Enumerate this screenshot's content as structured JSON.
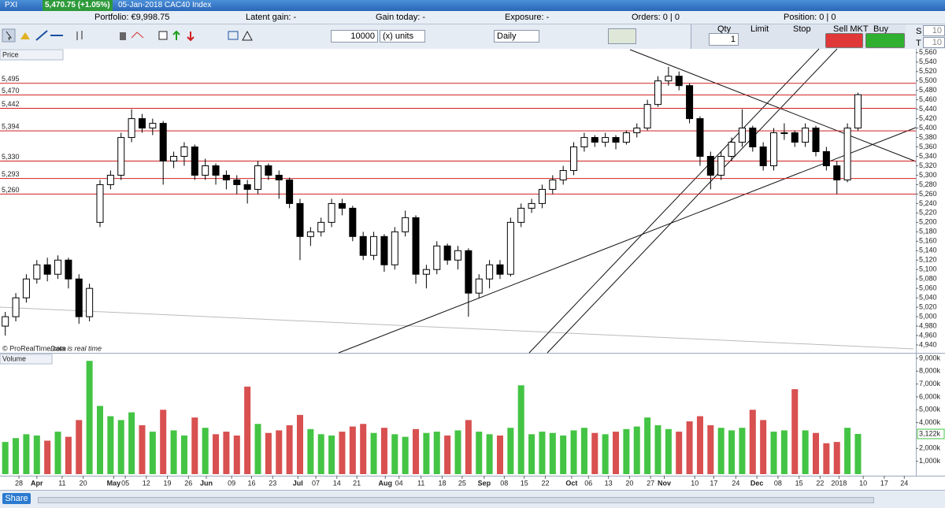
{
  "header": {
    "ticker": "PXI",
    "quote": "5,470.75 (+1.05%)",
    "instrument": "05-Jan-2018 CAC40 Index"
  },
  "info": {
    "portfolio": "Portfolio: €9,998.75",
    "latent_gain": "Latent gain: -",
    "gain_today": "Gain today: -",
    "exposure": "Exposure: -",
    "orders": "Orders: 0 | 0",
    "position": "Position: 0 | 0"
  },
  "toolbar": {
    "quantity": "10000",
    "units": "(x) units",
    "period": "Daily",
    "qty_label": "Qty",
    "qty_value": "1",
    "limit": "Limit",
    "stop": "Stop",
    "sell": "Sell MKT",
    "buy": "Buy MKT",
    "s_label": "S",
    "s_value": "10",
    "t_label": "T",
    "t_value": "10"
  },
  "panels": {
    "price": "Price",
    "volume": "Volume",
    "copyright": "© ProRealTime.com",
    "realtime": "Data is real time"
  },
  "footer": {
    "share": "Share"
  },
  "chart_data": {
    "type": "candlestick",
    "candles": [
      [
        4980,
        5010,
        4960,
        5000
      ],
      [
        5000,
        5050,
        4990,
        5040
      ],
      [
        5040,
        5090,
        5030,
        5080
      ],
      [
        5080,
        5120,
        5070,
        5110
      ],
      [
        5110,
        5125,
        5075,
        5090
      ],
      [
        5090,
        5130,
        5080,
        5120
      ],
      [
        5120,
        5125,
        5060,
        5080
      ],
      [
        5080,
        5090,
        4985,
        5000
      ],
      [
        5000,
        5070,
        4990,
        5060
      ],
      [
        5200,
        5290,
        5190,
        5280
      ],
      [
        5280,
        5310,
        5270,
        5300
      ],
      [
        5300,
        5390,
        5290,
        5380
      ],
      [
        5380,
        5440,
        5370,
        5420
      ],
      [
        5420,
        5430,
        5390,
        5400
      ],
      [
        5400,
        5420,
        5385,
        5410
      ],
      [
        5410,
        5415,
        5280,
        5330
      ],
      [
        5330,
        5350,
        5315,
        5340
      ],
      [
        5340,
        5370,
        5320,
        5360
      ],
      [
        5360,
        5365,
        5290,
        5300
      ],
      [
        5300,
        5335,
        5290,
        5320
      ],
      [
        5320,
        5325,
        5280,
        5300
      ],
      [
        5300,
        5310,
        5270,
        5290
      ],
      [
        5290,
        5300,
        5260,
        5280
      ],
      [
        5280,
        5290,
        5240,
        5270
      ],
      [
        5270,
        5330,
        5260,
        5320
      ],
      [
        5320,
        5325,
        5290,
        5300
      ],
      [
        5300,
        5310,
        5250,
        5290
      ],
      [
        5290,
        5295,
        5230,
        5240
      ],
      [
        5240,
        5250,
        5120,
        5170
      ],
      [
        5170,
        5190,
        5150,
        5180
      ],
      [
        5180,
        5210,
        5170,
        5200
      ],
      [
        5200,
        5250,
        5190,
        5240
      ],
      [
        5240,
        5250,
        5215,
        5230
      ],
      [
        5230,
        5235,
        5160,
        5170
      ],
      [
        5170,
        5180,
        5120,
        5130
      ],
      [
        5130,
        5180,
        5120,
        5170
      ],
      [
        5170,
        5175,
        5095,
        5110
      ],
      [
        5110,
        5190,
        5100,
        5180
      ],
      [
        5180,
        5225,
        5170,
        5210
      ],
      [
        5210,
        5215,
        5070,
        5090
      ],
      [
        5090,
        5110,
        5060,
        5100
      ],
      [
        5100,
        5160,
        5090,
        5150
      ],
      [
        5150,
        5155,
        5110,
        5120
      ],
      [
        5120,
        5150,
        5100,
        5140
      ],
      [
        5140,
        5145,
        5000,
        5050
      ],
      [
        5050,
        5090,
        5040,
        5080
      ],
      [
        5080,
        5120,
        5060,
        5110
      ],
      [
        5110,
        5120,
        5080,
        5090
      ],
      [
        5090,
        5210,
        5085,
        5200
      ],
      [
        5200,
        5240,
        5190,
        5230
      ],
      [
        5230,
        5250,
        5220,
        5240
      ],
      [
        5240,
        5280,
        5230,
        5270
      ],
      [
        5270,
        5300,
        5260,
        5290
      ],
      [
        5290,
        5320,
        5280,
        5310
      ],
      [
        5310,
        5370,
        5300,
        5360
      ],
      [
        5360,
        5390,
        5350,
        5380
      ],
      [
        5380,
        5385,
        5360,
        5370
      ],
      [
        5370,
        5390,
        5360,
        5380
      ],
      [
        5380,
        5385,
        5355,
        5370
      ],
      [
        5370,
        5395,
        5365,
        5390
      ],
      [
        5390,
        5410,
        5380,
        5400
      ],
      [
        5400,
        5460,
        5395,
        5450
      ],
      [
        5450,
        5510,
        5445,
        5500
      ],
      [
        5500,
        5530,
        5490,
        5510
      ],
      [
        5510,
        5520,
        5480,
        5490
      ],
      [
        5490,
        5495,
        5410,
        5420
      ],
      [
        5420,
        5425,
        5320,
        5340
      ],
      [
        5340,
        5350,
        5270,
        5300
      ],
      [
        5300,
        5350,
        5290,
        5340
      ],
      [
        5340,
        5380,
        5330,
        5370
      ],
      [
        5370,
        5440,
        5360,
        5400
      ],
      [
        5400,
        5405,
        5350,
        5360
      ],
      [
        5360,
        5370,
        5310,
        5320
      ],
      [
        5320,
        5400,
        5310,
        5390
      ],
      [
        5390,
        5410,
        5375,
        5390
      ],
      [
        5390,
        5395,
        5360,
        5370
      ],
      [
        5370,
        5410,
        5360,
        5400
      ],
      [
        5400,
        5405,
        5340,
        5350
      ],
      [
        5350,
        5360,
        5310,
        5320
      ],
      [
        5320,
        5330,
        5260,
        5290
      ],
      [
        5290,
        5410,
        5285,
        5400
      ],
      [
        5400,
        5475,
        5395,
        5470.75
      ]
    ],
    "up_color": "#ffffff",
    "down_color": "#000000",
    "xlim": [
      -0.5,
      86.5
    ],
    "xticks": [
      {
        "value": 1.3,
        "label": "28"
      },
      {
        "value": 3.0,
        "label": "Apr"
      },
      {
        "value": 5.4,
        "label": "11"
      },
      {
        "value": 7.4,
        "label": "20"
      },
      {
        "value": 10.3,
        "label": "May"
      },
      {
        "value": 11.4,
        "label": "05"
      },
      {
        "value": 13.4,
        "label": "12"
      },
      {
        "value": 15.4,
        "label": "19"
      },
      {
        "value": 17.4,
        "label": "26"
      },
      {
        "value": 19.1,
        "label": "Jun"
      },
      {
        "value": 21.5,
        "label": "09"
      },
      {
        "value": 23.4,
        "label": "16"
      },
      {
        "value": 25.4,
        "label": "23"
      },
      {
        "value": 27.8,
        "label": "Jul"
      },
      {
        "value": 29.5,
        "label": "07"
      },
      {
        "value": 31.5,
        "label": "14"
      },
      {
        "value": 33.4,
        "label": "21"
      },
      {
        "value": 36.1,
        "label": "Aug"
      },
      {
        "value": 37.4,
        "label": "04"
      },
      {
        "value": 39.5,
        "label": "11"
      },
      {
        "value": 41.5,
        "label": "18"
      },
      {
        "value": 43.4,
        "label": "25"
      },
      {
        "value": 45.5,
        "label": "Sep"
      },
      {
        "value": 47.4,
        "label": "08"
      },
      {
        "value": 49.3,
        "label": "15"
      },
      {
        "value": 51.3,
        "label": "22"
      },
      {
        "value": 53.8,
        "label": "Oct"
      },
      {
        "value": 55.4,
        "label": "06"
      },
      {
        "value": 57.3,
        "label": "13"
      },
      {
        "value": 59.3,
        "label": "20"
      },
      {
        "value": 61.3,
        "label": "27"
      },
      {
        "value": 62.6,
        "label": "Nov"
      },
      {
        "value": 65.5,
        "label": "10"
      },
      {
        "value": 67.3,
        "label": "17"
      },
      {
        "value": 69.4,
        "label": "24"
      },
      {
        "value": 71.4,
        "label": "Dec"
      },
      {
        "value": 73.4,
        "label": "08"
      },
      {
        "value": 75.4,
        "label": "15"
      },
      {
        "value": 77.4,
        "label": "22"
      },
      {
        "value": 79.2,
        "label": "2018"
      },
      {
        "value": 81.5,
        "label": "10"
      },
      {
        "value": 83.5,
        "label": "17"
      },
      {
        "value": 85.4,
        "label": "24"
      }
    ],
    "ylim": [
      4925,
      5568
    ],
    "yticks": [
      {
        "value": 4940,
        "label": "4,940"
      },
      {
        "value": 4960,
        "label": "4,960"
      },
      {
        "value": 4980,
        "label": "4,980"
      },
      {
        "value": 5000,
        "label": "5,000"
      },
      {
        "value": 5020,
        "label": "5,020"
      },
      {
        "value": 5040,
        "label": "5,040"
      },
      {
        "value": 5060,
        "label": "5,060"
      },
      {
        "value": 5080,
        "label": "5,080"
      },
      {
        "value": 5100,
        "label": "5,100"
      },
      {
        "value": 5120,
        "label": "5,120"
      },
      {
        "value": 5140,
        "label": "5,140"
      },
      {
        "value": 5160,
        "label": "5,160"
      },
      {
        "value": 5180,
        "label": "5,180"
      },
      {
        "value": 5200,
        "label": "5,200"
      },
      {
        "value": 5220,
        "label": "5,220"
      },
      {
        "value": 5240,
        "label": "5,240"
      },
      {
        "value": 5260,
        "label": "5,260"
      },
      {
        "value": 5280,
        "label": "5,280"
      },
      {
        "value": 5300,
        "label": "5,300"
      },
      {
        "value": 5320,
        "label": "5,320"
      },
      {
        "value": 5340,
        "label": "5,340"
      },
      {
        "value": 5360,
        "label": "5,360"
      },
      {
        "value": 5380,
        "label": "5,380"
      },
      {
        "value": 5400,
        "label": "5,400"
      },
      {
        "value": 5420,
        "label": "5,420"
      },
      {
        "value": 5440,
        "label": "5,440"
      },
      {
        "value": 5460,
        "label": "5,460"
      },
      {
        "value": 5480,
        "label": "5,480"
      },
      {
        "value": 5500,
        "label": "5,500"
      },
      {
        "value": 5520,
        "label": "5,520"
      },
      {
        "value": 5540,
        "label": "5,540"
      },
      {
        "value": 5560,
        "label": "5,560"
      }
    ],
    "levels": [
      {
        "value": 5495,
        "label": "5,495"
      },
      {
        "value": 5470,
        "label": "5,470"
      },
      {
        "value": 5442,
        "label": "5,442"
      },
      {
        "value": 5394,
        "label": "5,394"
      },
      {
        "value": 5330,
        "label": "5,330"
      },
      {
        "value": 5293,
        "label": "5,293"
      },
      {
        "value": 5260,
        "label": "5,260"
      }
    ],
    "level_color": "#d02020",
    "volume": {
      "values": [
        2500,
        2800,
        3100,
        3000,
        2600,
        3300,
        2900,
        4200,
        8800,
        5300,
        4500,
        4200,
        4800,
        3800,
        3300,
        5000,
        3400,
        3000,
        4400,
        3600,
        3100,
        3300,
        3000,
        6800,
        3900,
        3200,
        3400,
        3800,
        4600,
        3500,
        3100,
        3000,
        3300,
        3700,
        3900,
        3200,
        3600,
        3100,
        2900,
        3500,
        3200,
        3300,
        3000,
        3400,
        4200,
        3300,
        3100,
        3000,
        3600,
        6900,
        3100,
        3300,
        3200,
        3000,
        3400,
        3600,
        3200,
        3100,
        3300,
        3500,
        3700,
        4400,
        3800,
        3500,
        3300,
        4100,
        4500,
        3800,
        3600,
        3400,
        3600,
        5000,
        4200,
        3300,
        3400,
        6600,
        3400,
        3200,
        2400,
        2500,
        3600,
        3122
      ],
      "last_label": "3,122k",
      "up_color": "#44c444",
      "down_color": "#d85050",
      "ylim": [
        0,
        9300
      ],
      "yticks": [
        {
          "value": 1000,
          "label": "1,000k"
        },
        {
          "value": 2000,
          "label": "2,000k"
        },
        {
          "value": 4000,
          "label": "4,000k"
        },
        {
          "value": 5000,
          "label": "5,000k"
        },
        {
          "value": 6000,
          "label": "6,000k"
        },
        {
          "value": 7000,
          "label": "7,000k"
        },
        {
          "value": 8000,
          "label": "8,000k"
        },
        {
          "value": 9000,
          "label": "9,000k"
        }
      ]
    }
  }
}
